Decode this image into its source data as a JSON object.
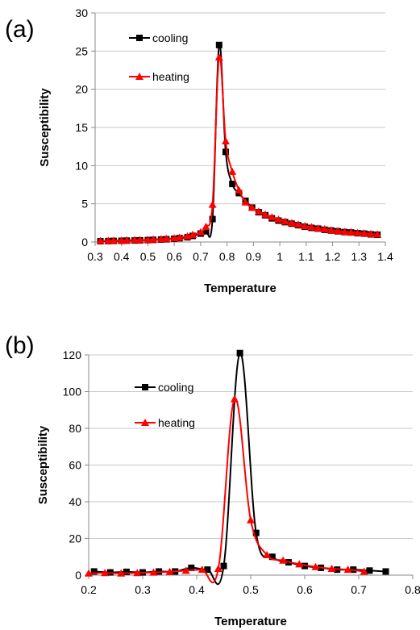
{
  "colors": {
    "cooling": "#000000",
    "heating": "#ff0000",
    "grid": "#c8c8c8",
    "axis": "#888888"
  },
  "chart_data": [
    {
      "panel_label": "(a)",
      "type": "line",
      "xlabel": "Temperature",
      "ylabel": "Susceptibility",
      "xlim": [
        0.3,
        1.4
      ],
      "ylim": [
        0,
        30
      ],
      "xticks": [
        "0.3",
        "0.4",
        "0.5",
        "0.6",
        "0.7",
        "0.8",
        "0.9",
        "1",
        "1.1",
        "1.2",
        "1.3",
        "1.4"
      ],
      "yticks": [
        "0",
        "5",
        "10",
        "15",
        "20",
        "25",
        "30"
      ],
      "grid": "horizontal",
      "legend_position": "top-left",
      "series": [
        {
          "name": "cooling",
          "marker": "square",
          "color": "#000000",
          "x": [
            0.32,
            0.35,
            0.37,
            0.4,
            0.42,
            0.45,
            0.47,
            0.5,
            0.52,
            0.55,
            0.57,
            0.6,
            0.62,
            0.65,
            0.67,
            0.7,
            0.72,
            0.745,
            0.77,
            0.795,
            0.82,
            0.845,
            0.87,
            0.895,
            0.92,
            0.945,
            0.97,
            0.995,
            1.02,
            1.045,
            1.07,
            1.095,
            1.12,
            1.145,
            1.17,
            1.195,
            1.22,
            1.245,
            1.27,
            1.295,
            1.32,
            1.345,
            1.37
          ],
          "y": [
            0.1,
            0.12,
            0.14,
            0.16,
            0.18,
            0.2,
            0.22,
            0.25,
            0.28,
            0.32,
            0.36,
            0.42,
            0.5,
            0.62,
            0.8,
            1.1,
            1.4,
            3.0,
            25.8,
            11.8,
            7.6,
            6.4,
            5.4,
            4.5,
            3.9,
            3.5,
            3.1,
            2.8,
            2.6,
            2.4,
            2.2,
            2.0,
            1.85,
            1.75,
            1.6,
            1.5,
            1.4,
            1.3,
            1.25,
            1.15,
            1.1,
            1.0,
            0.95
          ]
        },
        {
          "name": "heating",
          "marker": "triangle",
          "color": "#ff0000",
          "x": [
            0.32,
            0.35,
            0.37,
            0.4,
            0.42,
            0.45,
            0.47,
            0.5,
            0.52,
            0.55,
            0.57,
            0.6,
            0.62,
            0.65,
            0.67,
            0.7,
            0.72,
            0.745,
            0.77,
            0.795,
            0.82,
            0.845,
            0.87,
            0.895,
            0.92,
            0.945,
            0.97,
            0.995,
            1.02,
            1.045,
            1.07,
            1.095,
            1.12,
            1.145,
            1.17,
            1.195,
            1.22,
            1.245,
            1.27,
            1.295,
            1.32,
            1.345,
            1.37
          ],
          "y": [
            0.15,
            0.17,
            0.19,
            0.21,
            0.23,
            0.26,
            0.28,
            0.31,
            0.34,
            0.38,
            0.43,
            0.5,
            0.6,
            0.75,
            0.95,
            1.3,
            2.0,
            4.9,
            24.2,
            13.2,
            9.2,
            6.8,
            5.2,
            4.5,
            4.0,
            3.6,
            3.25,
            2.95,
            2.7,
            2.5,
            2.3,
            2.1,
            1.95,
            1.8,
            1.7,
            1.55,
            1.45,
            1.35,
            1.3,
            1.2,
            1.15,
            1.05,
            1.0
          ]
        }
      ]
    },
    {
      "panel_label": "(b)",
      "type": "line",
      "xlabel": "Temperature",
      "ylabel": "Susceptibility",
      "xlim": [
        0.2,
        0.8
      ],
      "ylim": [
        0,
        120
      ],
      "xticks": [
        "0.2",
        "0.3",
        "0.4",
        "0.5",
        "0.6",
        "0.7",
        "0.8"
      ],
      "yticks": [
        "0",
        "20",
        "40",
        "60",
        "80",
        "100",
        "120"
      ],
      "grid": "horizontal",
      "legend_position": "top-left",
      "series": [
        {
          "name": "cooling",
          "marker": "square",
          "color": "#000000",
          "x": [
            0.21,
            0.24,
            0.27,
            0.3,
            0.33,
            0.36,
            0.39,
            0.42,
            0.45,
            0.48,
            0.51,
            0.54,
            0.57,
            0.6,
            0.63,
            0.66,
            0.69,
            0.72,
            0.75
          ],
          "y": [
            2.0,
            1.5,
            1.8,
            1.5,
            2.0,
            2.0,
            4.0,
            3.0,
            5.0,
            121.0,
            23.0,
            10.0,
            7.0,
            5.0,
            4.0,
            3.0,
            3.0,
            2.5,
            2.0
          ]
        },
        {
          "name": "heating",
          "marker": "triangle",
          "color": "#ff0000",
          "x": [
            0.2,
            0.23,
            0.26,
            0.29,
            0.32,
            0.35,
            0.38,
            0.41,
            0.44,
            0.47,
            0.5,
            0.53,
            0.56,
            0.59,
            0.62,
            0.65,
            0.68,
            0.71
          ],
          "y": [
            1.0,
            1.2,
            1.0,
            1.2,
            1.5,
            1.8,
            2.5,
            3.0,
            3.5,
            96.0,
            30.0,
            11.0,
            8.0,
            6.0,
            4.5,
            3.5,
            3.0,
            2.0
          ]
        }
      ]
    }
  ]
}
